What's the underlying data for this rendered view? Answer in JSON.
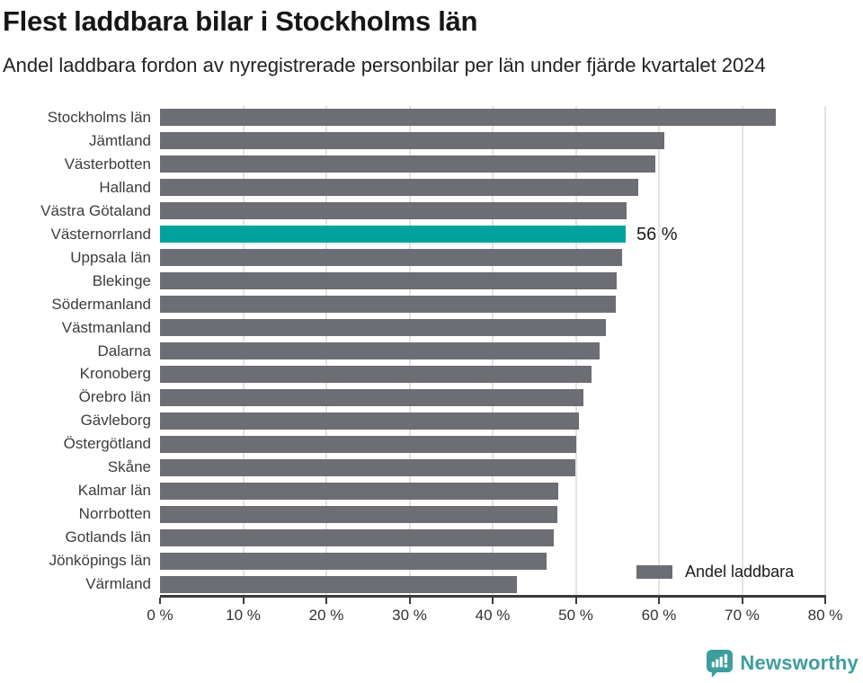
{
  "header": {
    "title": "Flest laddbara bilar i Stockholms län",
    "subtitle": "Andel laddbara fordon av nyregistrerade personbilar per län under fjärde kvartalet 2024"
  },
  "chart_data": {
    "type": "bar",
    "orientation": "horizontal",
    "title": "Flest laddbara bilar i Stockholms län",
    "subtitle": "Andel laddbara fordon av nyregistrerade personbilar per län under fjärde kvartalet 2024",
    "categories": [
      "Stockholms län",
      "Jämtland",
      "Västerbotten",
      "Halland",
      "Västra Götaland",
      "Västernorrland",
      "Uppsala län",
      "Blekinge",
      "Södermanland",
      "Västmanland",
      "Dalarna",
      "Kronoberg",
      "Örebro län",
      "Gävleborg",
      "Östergötland",
      "Skåne",
      "Kalmar län",
      "Norrbotten",
      "Gotlands län",
      "Jönköpings län",
      "Värmland"
    ],
    "values": [
      74.1,
      60.6,
      59.6,
      57.5,
      56.1,
      56.0,
      55.6,
      54.9,
      54.8,
      53.6,
      52.9,
      51.9,
      50.9,
      50.4,
      50.1,
      49.9,
      47.9,
      47.8,
      47.3,
      46.5,
      42.9
    ],
    "unit": "%",
    "xlim": [
      0,
      80
    ],
    "grid": "vertical",
    "x_ticks": [
      {
        "value": 0,
        "label": "0 %"
      },
      {
        "value": 10,
        "label": "10 %"
      },
      {
        "value": 20,
        "label": "20 %"
      },
      {
        "value": 30,
        "label": "30 %"
      },
      {
        "value": 40,
        "label": "40 %"
      },
      {
        "value": 50,
        "label": "50 %"
      },
      {
        "value": 60,
        "label": "60 %"
      },
      {
        "value": 70,
        "label": "70 %"
      },
      {
        "value": 80,
        "label": "80 %"
      }
    ],
    "highlight": {
      "category": "Västernorrland",
      "index": 5,
      "label": "56 %"
    },
    "legend": {
      "label": "Andel laddbara",
      "position": "bottom-right"
    },
    "colors": {
      "bar": "#6d6d74",
      "highlight": "#00a39b",
      "gridline": "#e3e3e3",
      "axis": "#3a3a3a"
    }
  },
  "footer": {
    "brand": "Newsworthy",
    "brand_color": "#3f9d9d",
    "logo_icon": "bar-chart-speech-bubble-icon"
  }
}
